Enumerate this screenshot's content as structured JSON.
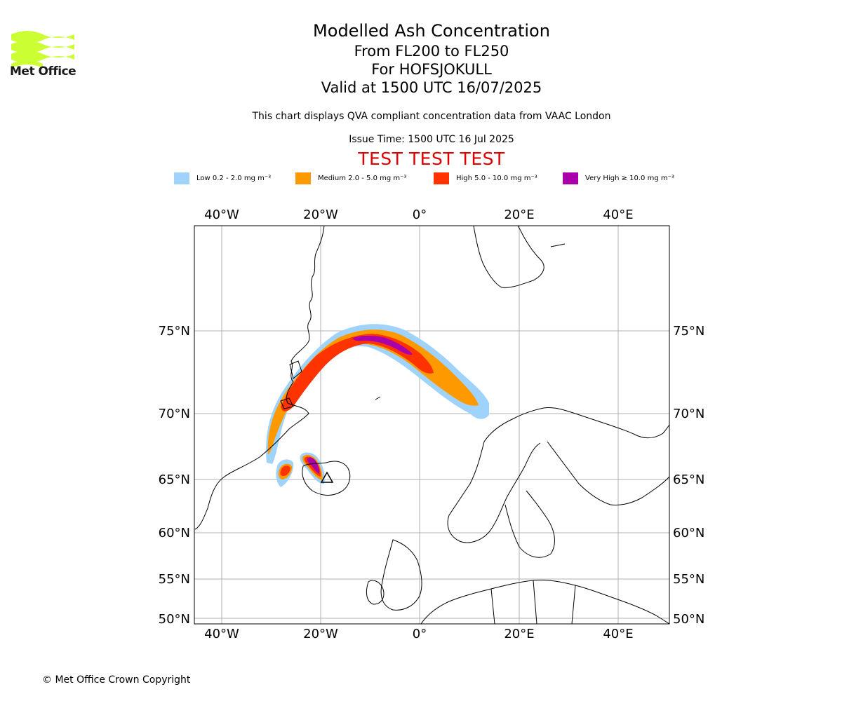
{
  "header": {
    "title": "Modelled Ash Concentration",
    "levels": "From FL200 to FL250",
    "volcano": "For HOFSJOKULL",
    "valid": "Valid at 1500 UTC 16/07/2025",
    "description": "This chart displays QVA compliant concentration data from VAAC London",
    "issue_time": "Issue Time: 1500 UTC 16 Jul 2025",
    "test_banner": "TEST TEST TEST"
  },
  "logo": {
    "text": "Met Office",
    "color": "#ccff33"
  },
  "legend": [
    {
      "label": "Low 0.2 - 2.0 mg m⁻³",
      "color": "#9fd3fb"
    },
    {
      "label": "Medium 2.0 - 5.0 mg m⁻³",
      "color": "#ff9900"
    },
    {
      "label": "High 5.0 - 10.0 mg m⁻³",
      "color": "#ff3300"
    },
    {
      "label": "Very High ≥ 10.0 mg m⁻³",
      "color": "#aa00aa"
    }
  ],
  "map": {
    "lon_ticks": [
      "40°W",
      "20°W",
      "0°",
      "20°E",
      "40°E"
    ],
    "lat_ticks": [
      "75°N",
      "70°N",
      "65°N",
      "60°N",
      "55°N",
      "50°N"
    ]
  },
  "footer": {
    "copyright": "© Met Office Crown Copyright"
  }
}
